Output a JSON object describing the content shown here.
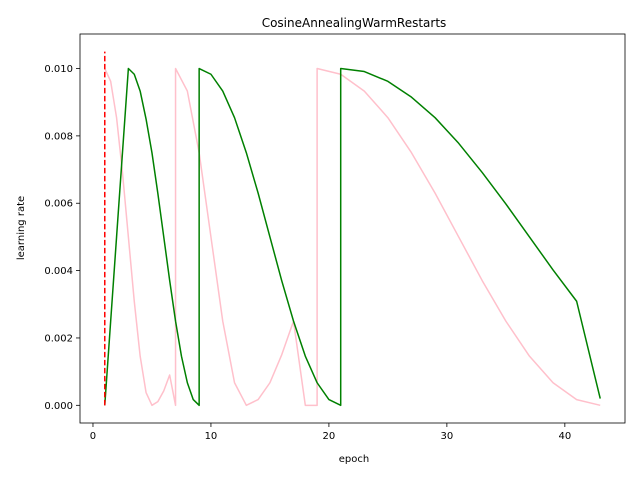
{
  "chart_data": {
    "type": "line",
    "title": "CosineAnnealingWarmRestarts",
    "xlabel": "epoch",
    "ylabel": "learning rate",
    "xlim": [
      -1.1,
      45.1
    ],
    "ylim": [
      -0.000525,
      0.011025
    ],
    "xticks": [
      0,
      10,
      20,
      30,
      40
    ],
    "yticks": [
      0.0,
      0.002,
      0.004,
      0.006,
      0.008,
      0.01
    ],
    "xtick_labels": [
      "0",
      "10",
      "20",
      "30",
      "40"
    ],
    "ytick_labels": [
      "0.000",
      "0.002",
      "0.004",
      "0.006",
      "0.008",
      "0.010"
    ],
    "grid": false,
    "series": [
      {
        "color": "#ffc0cb",
        "style": "solid",
        "points": [
          [
            1,
            0.01
          ],
          [
            1.5,
            0.00962
          ],
          [
            2,
            0.00854
          ],
          [
            2.5,
            0.00691
          ],
          [
            3,
            0.005
          ],
          [
            3.5,
            0.00309
          ],
          [
            4,
            0.00146
          ],
          [
            4.5,
            0.00038
          ],
          [
            5,
            0.0
          ],
          [
            5.5,
            0.00011
          ],
          [
            6,
            0.00043
          ],
          [
            6.5,
            0.0009
          ],
          [
            7,
            0.0
          ],
          [
            7,
            0.01
          ],
          [
            8,
            0.00933
          ],
          [
            9,
            0.0075
          ],
          [
            10,
            0.005
          ],
          [
            11,
            0.0025
          ],
          [
            12,
            0.00067
          ],
          [
            13,
            0.0
          ],
          [
            14,
            0.00017
          ],
          [
            15,
            0.00067
          ],
          [
            16,
            0.0015
          ],
          [
            17,
            0.0025
          ],
          [
            18,
            0.0
          ],
          [
            19,
            0.0
          ],
          [
            19,
            0.01
          ],
          [
            21,
            0.00983
          ],
          [
            23,
            0.00933
          ],
          [
            25,
            0.00854
          ],
          [
            27,
            0.0075
          ],
          [
            29,
            0.0063
          ],
          [
            31,
            0.005
          ],
          [
            33,
            0.0037
          ],
          [
            35,
            0.0025
          ],
          [
            37,
            0.00146
          ],
          [
            39,
            0.00067
          ],
          [
            41,
            0.00017
          ],
          [
            43,
            0.0
          ]
        ]
      },
      {
        "color": "#008000",
        "style": "solid",
        "points": [
          [
            1,
            0.0
          ],
          [
            1.5,
            0.0025
          ],
          [
            2,
            0.005
          ],
          [
            2.5,
            0.0075
          ],
          [
            3,
            0.01
          ],
          [
            3.5,
            0.00983
          ],
          [
            4,
            0.00933
          ],
          [
            4.5,
            0.0085
          ],
          [
            5,
            0.0075
          ],
          [
            5.5,
            0.00629
          ],
          [
            6,
            0.005
          ],
          [
            6.5,
            0.00371
          ],
          [
            7,
            0.0025
          ],
          [
            7.5,
            0.00146
          ],
          [
            8,
            0.00067
          ],
          [
            8.5,
            0.00017
          ],
          [
            9,
            0.0
          ],
          [
            9,
            0.01
          ],
          [
            10,
            0.00983
          ],
          [
            11,
            0.00933
          ],
          [
            12,
            0.00854
          ],
          [
            13,
            0.0075
          ],
          [
            14,
            0.0063
          ],
          [
            15,
            0.005
          ],
          [
            16,
            0.0037
          ],
          [
            17,
            0.0025
          ],
          [
            18,
            0.00146
          ],
          [
            19,
            0.00067
          ],
          [
            20,
            0.00017
          ],
          [
            21,
            0.0
          ],
          [
            21,
            0.01
          ],
          [
            23,
            0.00991
          ],
          [
            25,
            0.00962
          ],
          [
            27,
            0.00915
          ],
          [
            29,
            0.00854
          ],
          [
            31,
            0.00778
          ],
          [
            33,
            0.00691
          ],
          [
            35,
            0.00598
          ],
          [
            37,
            0.005
          ],
          [
            39,
            0.00402
          ],
          [
            41,
            0.00309
          ],
          [
            43,
            0.0002
          ]
        ]
      },
      {
        "color": "#ff0000",
        "style": "dashed",
        "points": [
          [
            1,
            0.0
          ],
          [
            1,
            0.0105
          ]
        ]
      }
    ]
  }
}
